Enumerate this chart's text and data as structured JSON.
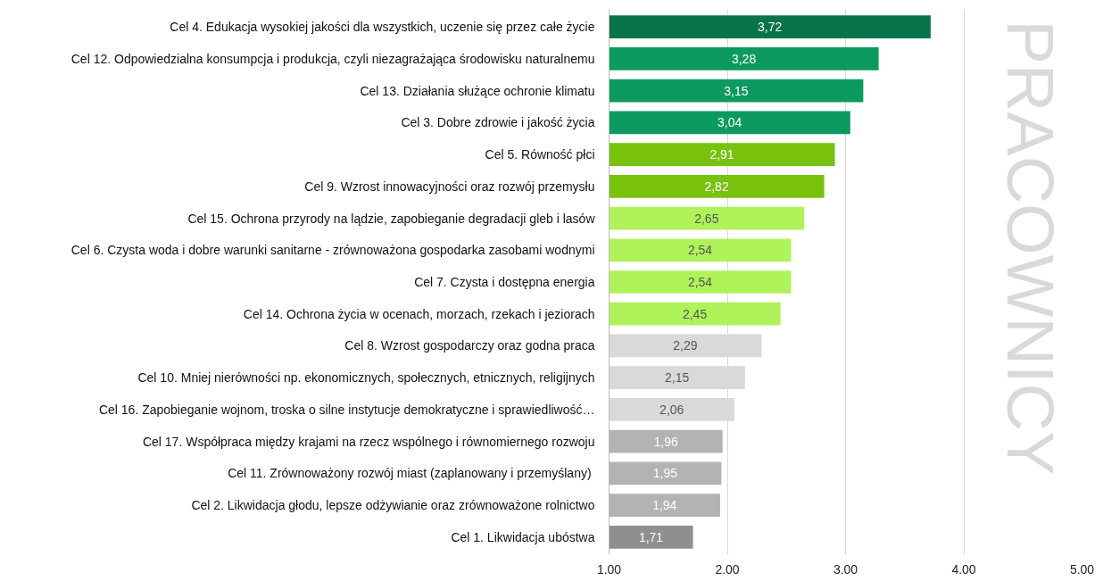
{
  "chart_data": {
    "type": "bar",
    "orientation": "horizontal",
    "categories": [
      "Cel 4. Edukacja wysokiej jakości dla wszystkich, uczenie się przez całe życie",
      "Cel 12. Odpowiedzialna konsumpcja i produkcja, czyli niezagrażająca środowisku naturalnemu",
      "Cel 13. Działania służące ochronie klimatu",
      "Cel 3. Dobre zdrowie i jakość życia",
      "Cel 5. Równość płci",
      "Cel 9. Wzrost innowacyjności oraz rozwój przemysłu",
      "Cel 15. Ochrona przyrody na lądzie, zapobieganie degradacji gleb i lasów",
      "Cel 6. Czysta woda i dobre warunki sanitarne - zrównoważona gospodarka zasobami wodnymi",
      "Cel 7. Czysta i dostępna energia",
      "Cel 14. Ochrona życia w ocenach, morzach, rzekach i jeziorach",
      "Cel 8. Wzrost gospodarczy oraz godna praca",
      "Cel 10. Mniej nierówności np. ekonomicznych, społecznych, etnicznych, religijnych",
      "Cel 16. Zapobieganie wojnom, troska o silne instytucje demokratyczne i sprawiedliwość…",
      "Cel 17. Współpraca między krajami na rzecz wspólnego i równomiernego rozwoju",
      "Cel 11.  Zrównoważony rozwój miast (zaplanowany i przemyślany)",
      "Cel 2. Likwidacja głodu, lepsze odżywianie oraz zrównoważone rolnictwo",
      "Cel 1. Likwidacja ubóstwa"
    ],
    "values": [
      3.72,
      3.28,
      3.15,
      3.04,
      2.91,
      2.82,
      2.65,
      2.54,
      2.54,
      2.45,
      2.29,
      2.15,
      2.06,
      1.96,
      1.95,
      1.94,
      1.71
    ],
    "value_labels": [
      "3,72",
      "3,28",
      "3,15",
      "3,04",
      "2,91",
      "2,82",
      "2,65",
      "2,54",
      "2,54",
      "2,45",
      "2,29",
      "2,15",
      "2,06",
      "1,96",
      "1,95",
      "1,94",
      "1,71"
    ],
    "colors": [
      "#08744a",
      "#0c9a60",
      "#0c9a60",
      "#0c9a60",
      "#78c20e",
      "#78c20e",
      "#b0f25a",
      "#b0f25a",
      "#b0f25a",
      "#b0f25a",
      "#d9d9d9",
      "#d9d9d9",
      "#d9d9d9",
      "#b3b3b3",
      "#b3b3b3",
      "#b3b3b3",
      "#8f8f8f"
    ],
    "xlim": [
      1,
      5
    ],
    "xticks": [
      {
        "value": 1,
        "label": "1.00"
      },
      {
        "value": 2,
        "label": "2.00"
      },
      {
        "value": 3,
        "label": "3.00"
      },
      {
        "value": 4,
        "label": "4.00"
      },
      {
        "value": 5,
        "label": "5.00"
      }
    ],
    "grid": "x",
    "annotations": [
      "PRACOWNICY"
    ]
  }
}
